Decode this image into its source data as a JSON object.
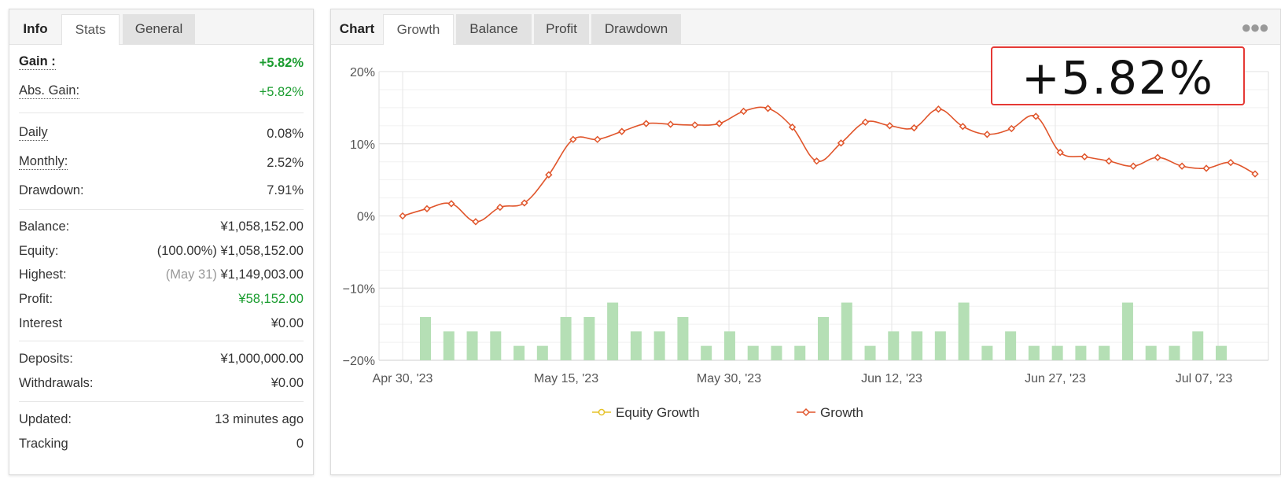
{
  "stats_panel": {
    "tabs": [
      "Info",
      "Stats",
      "General"
    ],
    "gain": {
      "label": "Gain :",
      "value": "+5.82%"
    },
    "abs_gain": {
      "label": "Abs. Gain:",
      "value": "+5.82%"
    },
    "daily": {
      "label": "Daily",
      "value": "0.08%"
    },
    "monthly": {
      "label": "Monthly:",
      "value": "2.52%"
    },
    "drawdown": {
      "label": "Drawdown:",
      "value": "7.91%"
    },
    "balance": {
      "label": "Balance:",
      "value": "¥1,058,152.00"
    },
    "equity": {
      "label": "Equity:",
      "note": "(100.00%)",
      "value": "¥1,058,152.00"
    },
    "highest": {
      "label": "Highest:",
      "note": "(May 31)",
      "value": "¥1,149,003.00"
    },
    "profit": {
      "label": "Profit:",
      "value": "¥58,152.00"
    },
    "interest": {
      "label": "Interest",
      "value": "¥0.00"
    },
    "deposits": {
      "label": "Deposits:",
      "value": "¥1,000,000.00"
    },
    "withdrawals": {
      "label": "Withdrawals:",
      "value": "¥0.00"
    },
    "updated": {
      "label": "Updated:",
      "value": "13 minutes ago"
    },
    "tracking": {
      "label": "Tracking",
      "value": "0"
    },
    "colors": {
      "positive": "#1a9c2f"
    }
  },
  "chart_panel": {
    "tabs": [
      "Chart",
      "Growth",
      "Balance",
      "Profit",
      "Drawdown"
    ],
    "active_tab": "Growth",
    "more_icon": "more-horizontal-icon",
    "highlight_value": "+5.82%"
  },
  "chart_data": {
    "type": "line",
    "y_axis": {
      "ticks": [
        "20%",
        "10%",
        "0%",
        "−10%",
        "−20%"
      ],
      "values": [
        20,
        10,
        0,
        -10,
        -20
      ],
      "ylim": [
        -20,
        20
      ]
    },
    "x_axis": {
      "tick_labels": [
        "Apr 30, '23",
        "May 15, '23",
        "May 30, '23",
        "Jun 12, '23",
        "Jun 27, '23",
        "Jul 07, '23"
      ]
    },
    "grid": true,
    "legend": {
      "placement": "bottom-center",
      "entries": [
        "Equity Growth",
        "Growth"
      ]
    },
    "series": [
      {
        "name": "Growth",
        "color": "#e0552b",
        "values": [
          0.0,
          1.0,
          1.7,
          -0.8,
          1.2,
          1.8,
          5.7,
          10.6,
          10.6,
          11.7,
          12.8,
          12.7,
          12.6,
          12.8,
          14.5,
          14.9,
          12.3,
          7.6,
          10.1,
          13.0,
          12.5,
          12.2,
          14.8,
          12.4,
          11.3,
          12.1,
          13.8,
          8.8,
          8.2,
          7.6,
          6.9,
          8.1,
          6.9,
          6.6,
          7.4,
          5.82
        ]
      },
      {
        "name": "Equity Growth",
        "color": "#e6c229",
        "values": []
      }
    ],
    "bars": {
      "color": "#b5dfb5",
      "values": [
        -14,
        -16,
        -16,
        -16,
        -18,
        -18,
        -14,
        -14,
        -12,
        -16,
        -16,
        -14,
        -18,
        -16,
        -18,
        -18,
        -18,
        -14,
        -12,
        -18,
        -16,
        -16,
        -16,
        -12,
        -18,
        -16,
        -18,
        -18,
        -18,
        -18,
        -12,
        -18,
        -18,
        -16,
        -18
      ]
    }
  }
}
